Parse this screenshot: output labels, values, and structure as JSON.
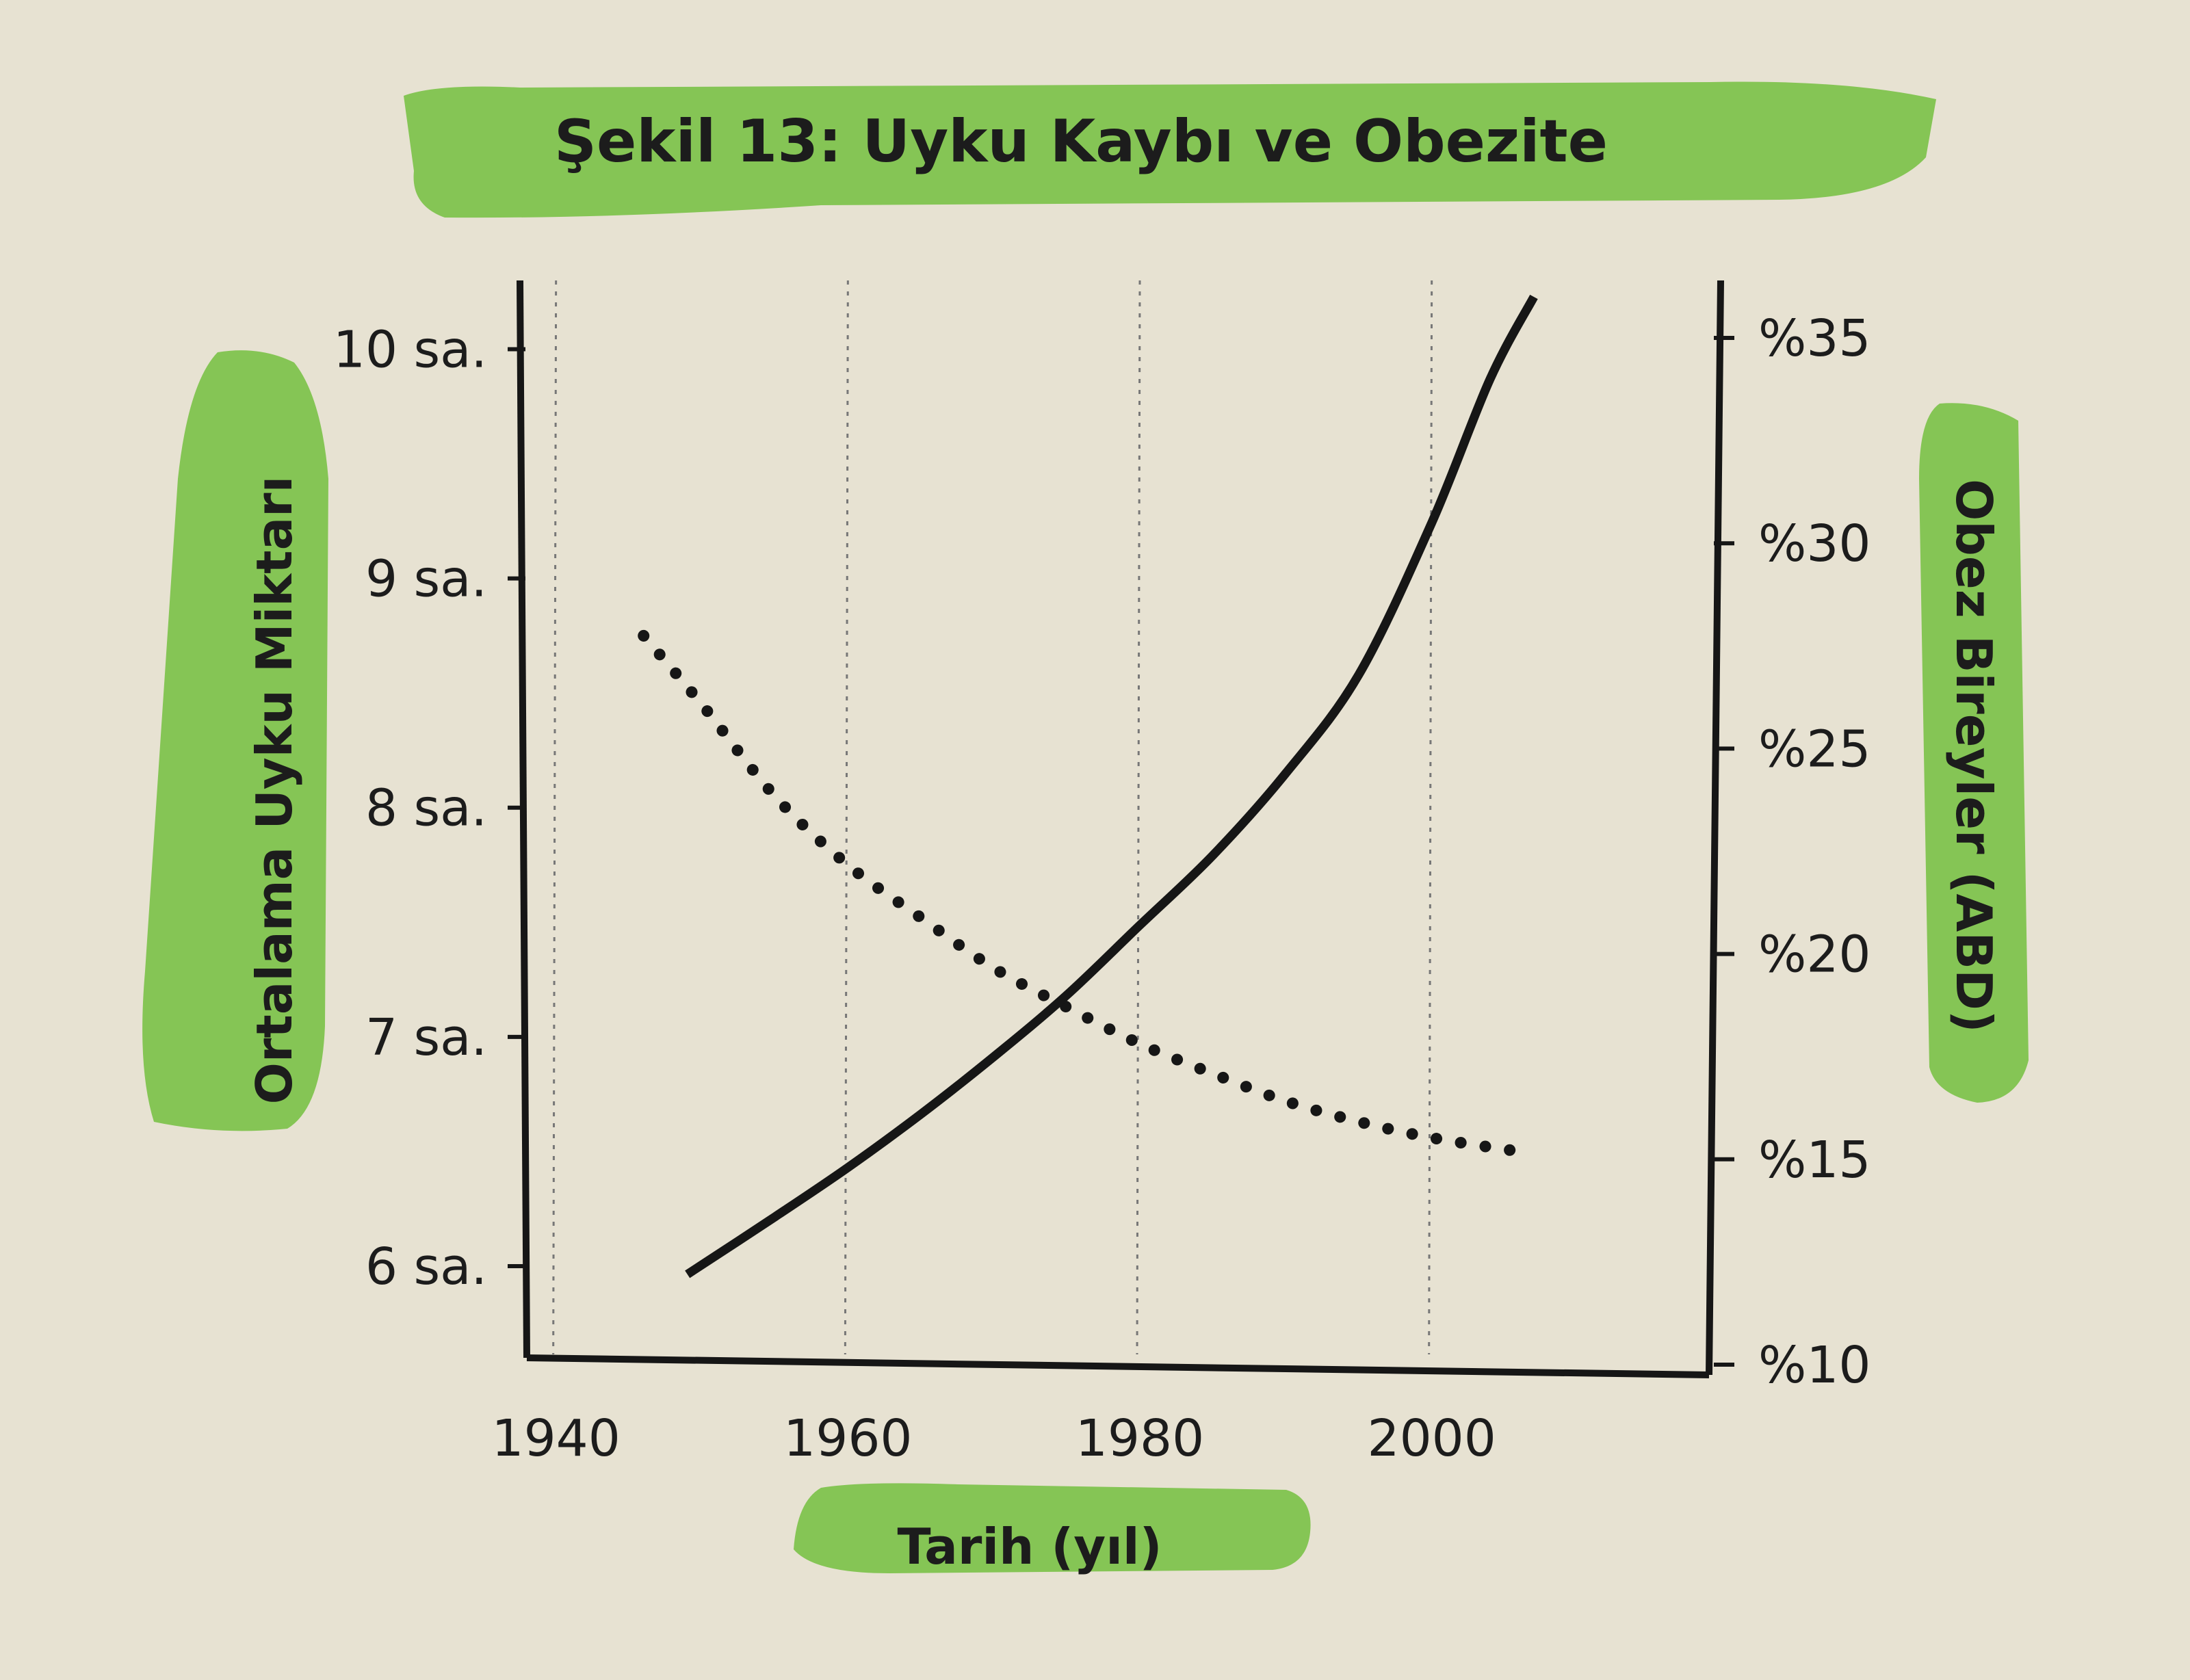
{
  "chart_data": {
    "type": "line",
    "title": "Şekil 13: Uyku Kaybı ve Obezite",
    "xlabel": "Tarih (yıl)",
    "ylabel_left": "Ortalama Uyku Miktarı",
    "ylabel_right": "Obez Bireyler (ABD)",
    "x_ticks": [
      1940,
      1960,
      1980,
      2000
    ],
    "x_tick_labels": [
      "1940",
      "1960",
      "1980",
      "2000"
    ],
    "xlim": [
      1938,
      2019
    ],
    "y_left_ticks": [
      6,
      7,
      8,
      9,
      10
    ],
    "y_left_tick_labels": [
      "6 sa.",
      "7 sa.",
      "8 sa.",
      "9 sa.",
      "10 sa."
    ],
    "ylim_left": [
      5.6,
      10.3
    ],
    "y_right_ticks": [
      10,
      15,
      20,
      25,
      30,
      35
    ],
    "y_right_tick_labels": [
      "%10",
      "%15",
      "%20",
      "%25",
      "%30",
      "%35"
    ],
    "ylim_right": [
      10,
      36.4
    ],
    "grid": "vertical dotted lines at x ticks",
    "series": [
      {
        "axis": "left",
        "style": "dotted",
        "x": [
          1946,
          1950,
          1955,
          1960,
          1965,
          1970,
          1975,
          1980,
          1985,
          1990,
          1995,
          2000,
          2006
        ],
        "values": [
          8.75,
          8.45,
          8.05,
          7.75,
          7.52,
          7.3,
          7.13,
          6.97,
          6.84,
          6.72,
          6.63,
          6.56,
          6.5
        ]
      },
      {
        "axis": "right",
        "style": "solid",
        "x": [
          1949,
          1955,
          1960,
          1965,
          1970,
          1975,
          1980,
          1985,
          1990,
          1995,
          2000,
          2004,
          2007
        ],
        "values": [
          12.2,
          13.6,
          14.8,
          16.1,
          17.5,
          19.0,
          20.7,
          22.4,
          24.4,
          26.8,
          30.5,
          34.0,
          36.0
        ]
      }
    ]
  },
  "colors": {
    "background": "#e7e2d2",
    "highlight": "#7dc24a",
    "ink": "#161616"
  }
}
